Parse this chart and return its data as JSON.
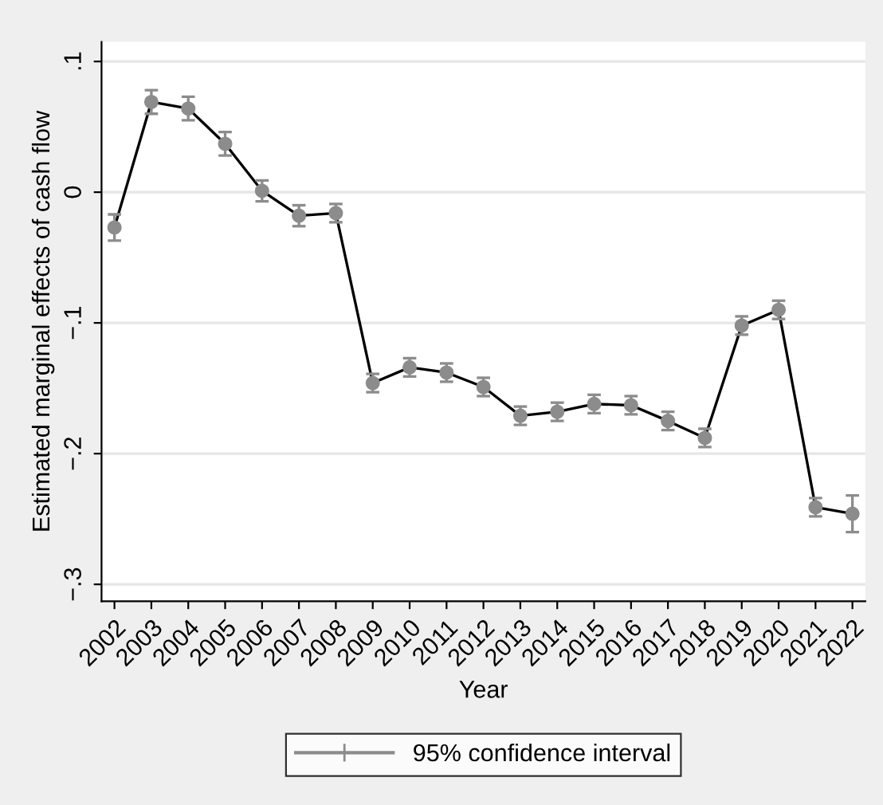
{
  "chart_data": {
    "type": "line",
    "xlabel": "Year",
    "ylabel": "Estimated marginal effects of cash flow",
    "categories": [
      "2002",
      "2003",
      "2004",
      "2005",
      "2006",
      "2007",
      "2008",
      "2009",
      "2010",
      "2011",
      "2012",
      "2013",
      "2014",
      "2015",
      "2016",
      "2017",
      "2018",
      "2019",
      "2020",
      "2021",
      "2022"
    ],
    "series": [
      {
        "name": "95% confidence interval",
        "color": "#8c8c8c",
        "values": [
          -0.027,
          0.069,
          0.064,
          0.037,
          0.001,
          -0.018,
          -0.016,
          -0.146,
          -0.134,
          -0.138,
          -0.149,
          -0.171,
          -0.168,
          -0.162,
          -0.163,
          -0.175,
          -0.188,
          -0.102,
          -0.09,
          -0.241,
          -0.246
        ],
        "errors": [
          0.01,
          0.009,
          0.009,
          0.009,
          0.008,
          0.008,
          0.007,
          0.007,
          0.007,
          0.007,
          0.007,
          0.007,
          0.007,
          0.007,
          0.007,
          0.007,
          0.007,
          0.007,
          0.007,
          0.007,
          0.014
        ]
      }
    ],
    "ylim": [
      -0.313,
      0.115
    ],
    "yticks": [
      {
        "value": -0.3,
        "label": "−.3"
      },
      {
        "value": -0.2,
        "label": "−.2"
      },
      {
        "value": -0.1,
        "label": "−.1"
      },
      0,
      {
        "value": 0.1,
        "label": ".1"
      }
    ],
    "grid": "y",
    "legend": "bottom",
    "marker": "circle",
    "line_style": "solid"
  }
}
